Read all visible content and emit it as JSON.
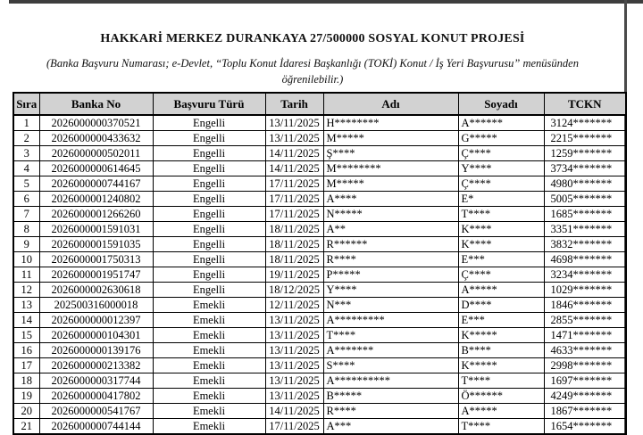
{
  "page": {
    "title": "HAKKARİ MERKEZ DURANKAYA 27/500000 SOSYAL KONUT PROJESİ",
    "subtitle_line1": "(Banka Başvuru Numarası; e-Devlet, “Toplu Konut İdaresi Başkanlığı (TOKİ) Konut / İş Yeri Başvurusu” menüsünden",
    "subtitle_line2": "öğrenilebilir.)"
  },
  "colors": {
    "header_bg": "#d2d2d2",
    "border": "#000000",
    "top_bar": "#3d3d3d",
    "page_bg": "#ffffff"
  },
  "table": {
    "columns": [
      "Sıra",
      "Banka No",
      "Başvuru Türü",
      "Tarih",
      "Adı",
      "Soyadı",
      "TCKN"
    ],
    "rows": [
      [
        "1",
        "2026000000370521",
        "Engelli",
        "13/11/2025",
        "H********",
        "A******",
        "3124*******"
      ],
      [
        "2",
        "2026000000433632",
        "Engelli",
        "13/11/2025",
        "M*****",
        "G*****",
        "2215*******"
      ],
      [
        "3",
        "2026000000502011",
        "Engelli",
        "14/11/2025",
        "Ş****",
        "Ç****",
        "1259*******"
      ],
      [
        "4",
        "2026000000614645",
        "Engelli",
        "14/11/2025",
        "M********",
        "Y****",
        "3734*******"
      ],
      [
        "5",
        "2026000000744167",
        "Engelli",
        "17/11/2025",
        "M*****",
        "Ç****",
        "4980*******"
      ],
      [
        "6",
        "2026000001240802",
        "Engelli",
        "17/11/2025",
        "A****",
        "E*",
        "5005*******"
      ],
      [
        "7",
        "2026000001266260",
        "Engelli",
        "17/11/2025",
        "N*****",
        "T****",
        "1685*******"
      ],
      [
        "8",
        "2026000001591031",
        "Engelli",
        "18/11/2025",
        "A**",
        "K****",
        "3351*******"
      ],
      [
        "9",
        "2026000001591035",
        "Engelli",
        "18/11/2025",
        "R******",
        "K****",
        "3832*******"
      ],
      [
        "10",
        "2026000001750313",
        "Engelli",
        "18/11/2025",
        "R****",
        "E***",
        "4698*******"
      ],
      [
        "11",
        "2026000001951747",
        "Engelli",
        "19/11/2025",
        "P*****",
        "Ç****",
        "3234*******"
      ],
      [
        "12",
        "2026000002630618",
        "Engelli",
        "18/12/2025",
        "Y****",
        "A*****",
        "1029*******"
      ],
      [
        "13",
        "202500316000018",
        "Emekli",
        "12/11/2025",
        "N***",
        "D****",
        "1846*******"
      ],
      [
        "14",
        "2026000000012397",
        "Emekli",
        "13/11/2025",
        "A*********",
        "E***",
        "2855*******"
      ],
      [
        "15",
        "2026000000104301",
        "Emekli",
        "13/11/2025",
        "T****",
        "K*****",
        "1471*******"
      ],
      [
        "16",
        "2026000000139176",
        "Emekli",
        "13/11/2025",
        "A*******",
        "B****",
        "4633*******"
      ],
      [
        "17",
        "2026000000213382",
        "Emekli",
        "13/11/2025",
        "S****",
        "K*****",
        "2998*******"
      ],
      [
        "18",
        "2026000000317744",
        "Emekli",
        "13/11/2025",
        "A**********",
        "T****",
        "1697*******"
      ],
      [
        "19",
        "2026000000417802",
        "Emekli",
        "13/11/2025",
        "B*****",
        "Ö******",
        "4249*******"
      ],
      [
        "20",
        "2026000000541767",
        "Emekli",
        "14/11/2025",
        "R****",
        "A*****",
        "1867*******"
      ],
      [
        "21",
        "2026000000744144",
        "Emekli",
        "17/11/2025",
        "A***",
        "T****",
        "1654*******"
      ]
    ]
  }
}
